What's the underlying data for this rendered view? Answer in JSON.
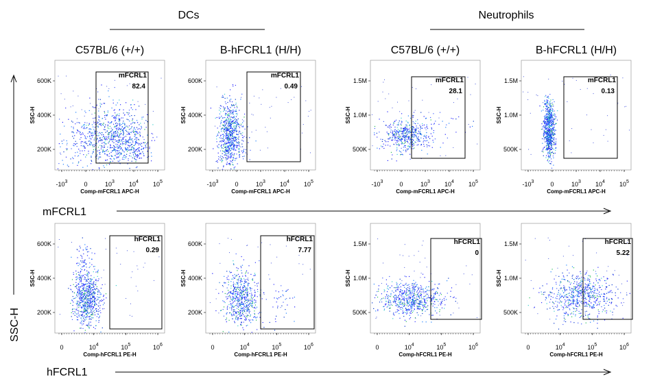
{
  "groups": [
    {
      "label": "DCs"
    },
    {
      "label": "Neutrophils"
    }
  ],
  "row_axis_labels": {
    "top": "mFCRL1",
    "bottom": "hFCRL1"
  },
  "y_axis_label": "SSC-H",
  "chart_data": [
    {
      "type": "scatter",
      "group": "DCs",
      "sample": "C57BL/6 (+/+)",
      "gate": "mFCRL1",
      "percent": "82.4",
      "xlabel": "Comp-mFCRL1 APC-H",
      "ylabel": "SSC-H",
      "x_ticks": [
        "-10^3",
        "0",
        "10^3",
        "10^4",
        "10^5"
      ],
      "y_ticks": [
        "200K",
        "400K",
        "600K"
      ]
    },
    {
      "type": "scatter",
      "group": "DCs",
      "sample": "B-hFCRL1 (H/H)",
      "gate": "mFCRL1",
      "percent": "0.49",
      "xlabel": "Comp-mFCRL1 APC-H",
      "ylabel": "SSC-H",
      "x_ticks": [
        "-10^3",
        "0",
        "10^3",
        "10^4",
        "10^5"
      ],
      "y_ticks": [
        "200K",
        "400K",
        "600K"
      ]
    },
    {
      "type": "scatter",
      "group": "Neutrophils",
      "sample": "C57BL/6 (+/+)",
      "gate": "mFCRL1",
      "percent": "28.1",
      "xlabel": "Comp-mFCRL1 APC-H",
      "ylabel": "SSC-H",
      "x_ticks": [
        "-10^3",
        "0",
        "10^3",
        "10^4",
        "10^5"
      ],
      "y_ticks": [
        "500K",
        "1.0M",
        "1.5M"
      ]
    },
    {
      "type": "scatter",
      "group": "Neutrophils",
      "sample": "B-hFCRL1 (H/H)",
      "gate": "mFCRL1",
      "percent": "0.13",
      "xlabel": "Comp-mFCRL1 APC-H",
      "ylabel": "SSC-H",
      "x_ticks": [
        "-10^3",
        "0",
        "10^3",
        "10^4",
        "10^5"
      ],
      "y_ticks": [
        "500K",
        "1.0M",
        "1.5M"
      ]
    },
    {
      "type": "scatter",
      "group": "DCs",
      "sample": "C57BL/6 (+/+)",
      "gate": "hFCRL1",
      "percent": "0.29",
      "xlabel": "Comp-hFCRL1 PE-H",
      "ylabel": "SSC-H",
      "x_ticks": [
        "0",
        "10^4",
        "10^5",
        "10^6"
      ],
      "y_ticks": [
        "200K",
        "400K",
        "600K"
      ]
    },
    {
      "type": "scatter",
      "group": "DCs",
      "sample": "B-hFCRL1 (H/H)",
      "gate": "hFCRL1",
      "percent": "7.77",
      "xlabel": "Comp-hFCRL1 PE-H",
      "ylabel": "SSC-H",
      "x_ticks": [
        "0",
        "10^4",
        "10^5",
        "10^6"
      ],
      "y_ticks": [
        "200K",
        "400K",
        "600K"
      ]
    },
    {
      "type": "scatter",
      "group": "Neutrophils",
      "sample": "C57BL/6 (+/+)",
      "gate": "hFCRL1",
      "percent": "0",
      "xlabel": "Comp-hFCRL1 PE-H",
      "ylabel": "SSC-H",
      "x_ticks": [
        "0",
        "10^4",
        "10^5",
        "10^6"
      ],
      "y_ticks": [
        "500K",
        "1.0M",
        "1.5M"
      ]
    },
    {
      "type": "scatter",
      "group": "Neutrophils",
      "sample": "B-hFCRL1 (H/H)",
      "gate": "hFCRL1",
      "percent": "5.22",
      "xlabel": "Comp-hFCRL1 PE-H",
      "ylabel": "SSC-H",
      "x_ticks": [
        "0",
        "10^4",
        "10^5",
        "10^6"
      ],
      "y_ticks": [
        "500K",
        "1.0M",
        "1.5M"
      ]
    }
  ]
}
